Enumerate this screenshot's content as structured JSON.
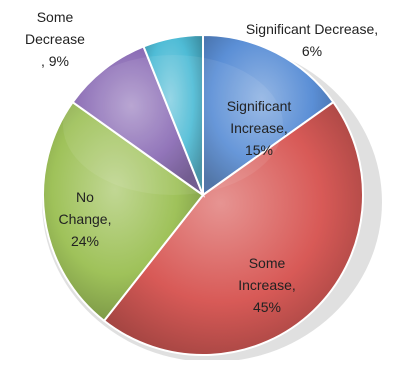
{
  "chart_data": {
    "type": "pie",
    "title": "",
    "slices": [
      {
        "label": "Significant Increase",
        "value": 15,
        "label_lines": [
          "Significant",
          "Increase,",
          "15%"
        ],
        "color": "#5b8fd6"
      },
      {
        "label": "Some Increase",
        "value": 45,
        "label_lines": [
          "Some",
          "Increase,",
          "45%"
        ],
        "color": "#d85a57"
      },
      {
        "label": "No Change",
        "value": 24,
        "label_lines": [
          "No",
          "Change,",
          "24%"
        ],
        "color": "#9fc25a"
      },
      {
        "label": "Some Decrease",
        "value": 9,
        "label_lines": [
          "Some",
          "Decrease",
          ", 9%"
        ],
        "color": "#8a6bb5"
      },
      {
        "label": "Significant Decrease",
        "value": 6,
        "label_lines": [
          "Significant Decrease,",
          "6%"
        ],
        "color": "#4fbcd6"
      }
    ],
    "start_angle_deg": 0,
    "direction": "clockwise",
    "legend": "none",
    "data_labels": "category, percent"
  }
}
